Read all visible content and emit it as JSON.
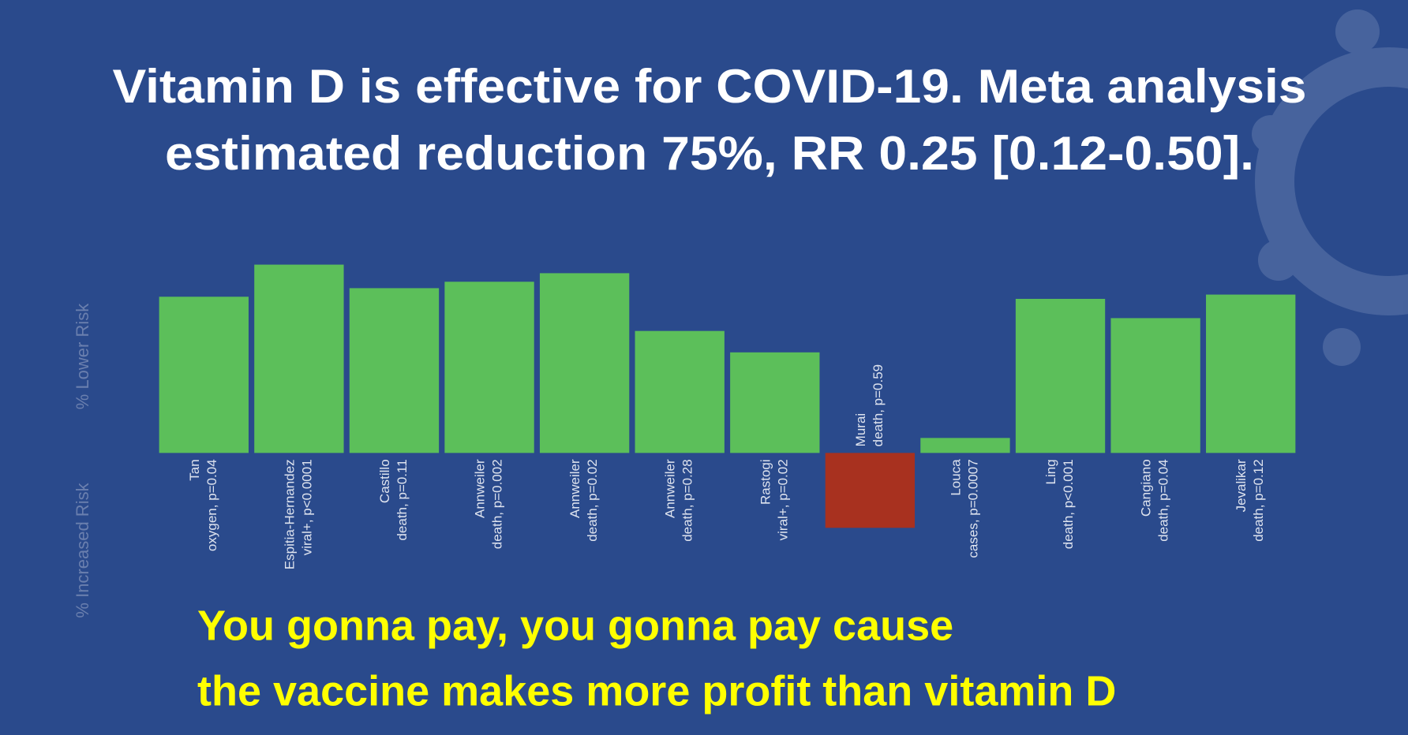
{
  "chart_data": {
    "type": "bar",
    "title_lines": [
      "Vitamin D is effective for COVID-19. Meta analysis",
      "estimated reduction 75%, RR 0.25 [0.12-0.50]."
    ],
    "y_label_positive": "% Lower Risk",
    "y_label_negative": "% Increased Risk",
    "categories": [
      "Tan",
      "Espitia-Hernandez",
      "Castillo",
      "Annweiler",
      "Annweiler",
      "Annweiler",
      "Rastogi",
      "Murai",
      "Louca",
      "Ling",
      "Cangiano",
      "Jevalikar"
    ],
    "category_details": [
      "oxygen, p=0.04",
      "viral+, p<0.0001",
      "death, p=0.11",
      "death, p=0.002",
      "death, p=0.02",
      "death, p=0.28",
      "viral+, p=0.02",
      "death, p=0.59",
      "cases, p=0.0007",
      "death, p<0.001",
      "death, p=0.04",
      "death, p=0.12"
    ],
    "values": [
      73,
      88,
      77,
      80,
      84,
      57,
      47,
      -35,
      7,
      72,
      63,
      74
    ],
    "ylim": [
      -50,
      100
    ],
    "color": "#5cbf5a",
    "negative_color": "#a8311f",
    "caption_lines": [
      "You gonna pay, you gonna pay cause",
      "the vaccine makes more profit than vitamin D"
    ]
  }
}
